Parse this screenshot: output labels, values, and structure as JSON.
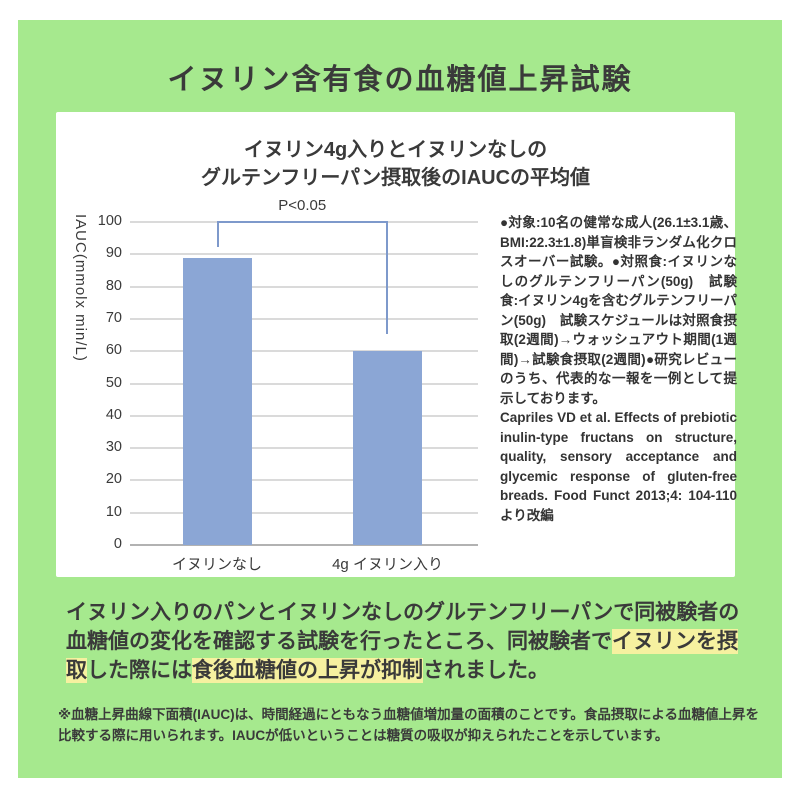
{
  "page": {
    "title": "イヌリン含有食の血糖値上昇試験"
  },
  "card": {
    "chart_title_line1": "イヌリン4g入りとイヌリンなしの",
    "chart_title_line2": "グルテンフリーパン摂取後のIAUCの平均値",
    "study_notes": "●対象:10名の健常な成人(26.1±3.1歳、BMI:22.3±1.8)単盲検非ランダム化クロスオーバー試験。●対照食:イヌリンなしのグルテンフリーパン(50g)　試験食:イヌリン4gを含むグルテンフリーパン(50g)　試験スケジュールは対照食摂取(2週間)→ウォッシュアウト期間(1週間)→試験食摂取(2週間)●研究レビューのうち、代表的な一報を一例として提示しております。",
    "citation": "Capriles VD et al. Effects of prebiotic inulin-type fructans on structure, quality, sensory acceptance and glycemic response of gluten-free breads. Food Funct 2013;4: 104-110　より改編"
  },
  "chart_data": {
    "type": "bar",
    "title": "イヌリン4g入りとイヌリンなしのグルテンフリーパン摂取後のIAUCの平均値",
    "categories": [
      "イヌリンなし",
      "4g イヌリン入り"
    ],
    "values": [
      89,
      60
    ],
    "xlabel": "",
    "ylabel": "IAUC(mmolx min/L)",
    "ylim": [
      0,
      100
    ],
    "ytick_step": 10,
    "grid": true,
    "legend": "none",
    "significance": {
      "label": "P<0.05",
      "level": 100,
      "tick_drop_to_bar1": 92,
      "tick_drop_to_bar2": 65
    }
  },
  "summary": {
    "segments": [
      {
        "text": "イヌリン入りのパンとイヌリンなしのグルテンフリーパンで同被験者の血糖値の変化を確認する試験を行ったところ、同被験者で",
        "highlight": false
      },
      {
        "text": "イヌリンを摂取",
        "highlight": true
      },
      {
        "text": "した際には",
        "highlight": false
      },
      {
        "text": "食後血糖値の上昇が抑制",
        "highlight": true
      },
      {
        "text": "されました。",
        "highlight": false
      }
    ]
  },
  "footnote": "※血糖上昇曲線下面積(IAUC)は、時間経過にともなう血糖値増加量の面積のことです。食品摂取による血糖値上昇を比較する際に用いられます。IAUCが低いということは糖質の吸収が抑えられたことを示しています。",
  "colors": {
    "background_green": "#a6e98e",
    "card_white": "#ffffff",
    "bar_fill": "#8ba6d5",
    "bracket_blue": "#7e99cb",
    "gridline_gray": "#dadada",
    "axis_gray": "#b2b2b2",
    "text_dark": "#3a3a3a",
    "highlight_yellow": "#f6f1a0"
  }
}
